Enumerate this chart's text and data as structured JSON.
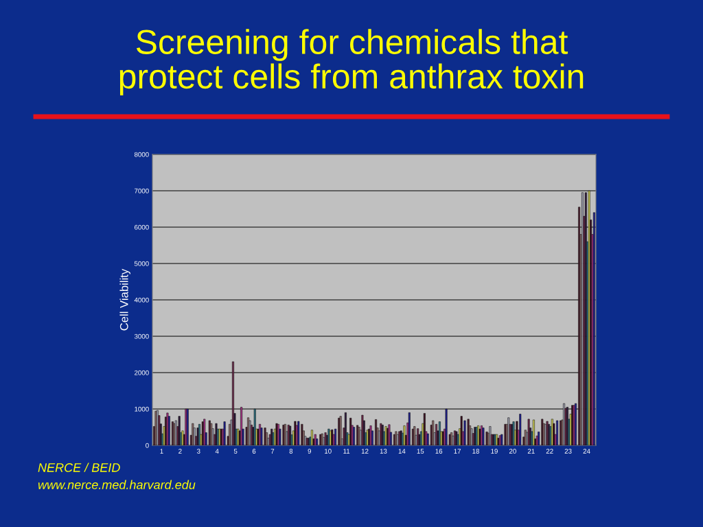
{
  "chart_data": {
    "type": "bar",
    "title": "Screening for chemicals that\nprotect cells from anthrax toxin",
    "ylabel": "Cell Viability",
    "categories": [
      "1",
      "2",
      "3",
      "4",
      "5",
      "6",
      "7",
      "8",
      "9",
      "10",
      "11",
      "12",
      "13",
      "14",
      "15",
      "16",
      "17",
      "18",
      "19",
      "20",
      "21",
      "22",
      "23",
      "24"
    ],
    "series": [
      {
        "color": "#4b1f2e",
        "values": [
          520,
          650,
          280,
          680,
          250,
          500,
          480,
          560,
          580,
          300,
          750,
          550,
          710,
          300,
          450,
          560,
          300,
          720,
          370,
          580,
          230,
          720,
          680,
          6550
        ]
      },
      {
        "color": "#8a6a6a",
        "values": [
          940,
          600,
          600,
          600,
          580,
          760,
          350,
          580,
          400,
          320,
          800,
          500,
          480,
          380,
          520,
          680,
          350,
          540,
          340,
          580,
          420,
          600,
          700,
          5800
        ]
      },
      {
        "color": "#9a9aaa",
        "values": [
          960,
          680,
          480,
          460,
          700,
          680,
          200,
          380,
          250,
          220,
          180,
          420,
          400,
          300,
          280,
          350,
          260,
          460,
          520,
          760,
          360,
          580,
          1150,
          6950
        ]
      },
      {
        "color": "#6b2a4a",
        "values": [
          820,
          520,
          250,
          300,
          2300,
          560,
          300,
          560,
          200,
          350,
          480,
          830,
          600,
          380,
          460,
          580,
          400,
          330,
          300,
          580,
          720,
          660,
          1020,
          6300
        ]
      },
      {
        "color": "#2e1a3a",
        "values": [
          590,
          800,
          480,
          600,
          880,
          500,
          450,
          530,
          200,
          280,
          900,
          680,
          560,
          400,
          300,
          400,
          380,
          500,
          300,
          580,
          480,
          580,
          1050,
          6950
        ]
      },
      {
        "color": "#2f6f7f",
        "values": [
          320,
          350,
          580,
          450,
          450,
          1000,
          350,
          290,
          230,
          450,
          350,
          350,
          380,
          340,
          380,
          650,
          300,
          500,
          300,
          650,
          380,
          520,
          720,
          5600
        ]
      },
      {
        "color": "#c8c850",
        "values": [
          520,
          400,
          300,
          450,
          450,
          450,
          450,
          400,
          420,
          400,
          300,
          420,
          520,
          540,
          600,
          380,
          460,
          540,
          300,
          420,
          700,
          720,
          860,
          7000
        ]
      },
      {
        "color": "#3a1020",
        "values": [
          780,
          300,
          650,
          450,
          400,
          450,
          600,
          660,
          180,
          430,
          750,
          450,
          470,
          280,
          880,
          380,
          800,
          450,
          200,
          660,
          180,
          600,
          1100,
          6200
        ]
      },
      {
        "color": "#a03080",
        "values": [
          890,
          1000,
          720,
          450,
          1050,
          580,
          580,
          550,
          300,
          300,
          550,
          540,
          570,
          620,
          380,
          450,
          380,
          540,
          270,
          420,
          260,
          300,
          1100,
          5800
        ]
      },
      {
        "color": "#1f1f8c",
        "values": [
          800,
          1000,
          350,
          650,
          450,
          480,
          450,
          660,
          180,
          450,
          500,
          400,
          360,
          900,
          320,
          1000,
          680,
          480,
          300,
          860,
          370,
          680,
          1150,
          6400
        ]
      }
    ],
    "ylim": [
      0,
      8000
    ],
    "yticks": [
      0,
      1000,
      2000,
      3000,
      4000,
      5000,
      6000,
      7000,
      8000
    ],
    "grid": "y",
    "annotations": [
      "NERCE / BEID",
      "www.nerce.med.harvard.edu"
    ]
  }
}
